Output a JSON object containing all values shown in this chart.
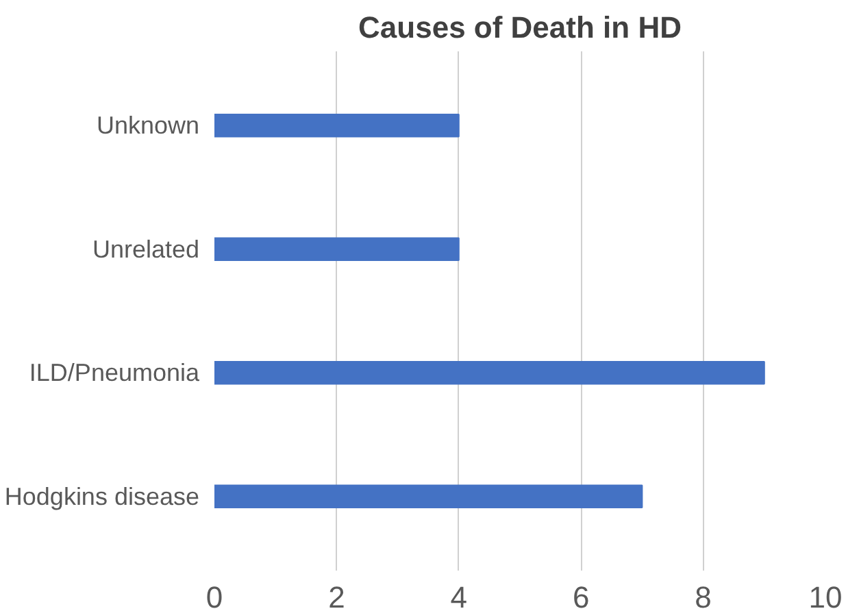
{
  "chart_data": {
    "type": "bar",
    "orientation": "horizontal",
    "title": "Causes of Death in HD",
    "categories": [
      "Unknown",
      "Unrelated",
      "ILD/Pneumonia",
      "Hodgkins disease"
    ],
    "values": [
      4,
      4,
      9,
      7
    ],
    "color": "#4472c4",
    "xlim": [
      0,
      10
    ],
    "xticks": [
      0,
      2,
      4,
      6,
      8,
      10
    ],
    "grid": "x"
  }
}
